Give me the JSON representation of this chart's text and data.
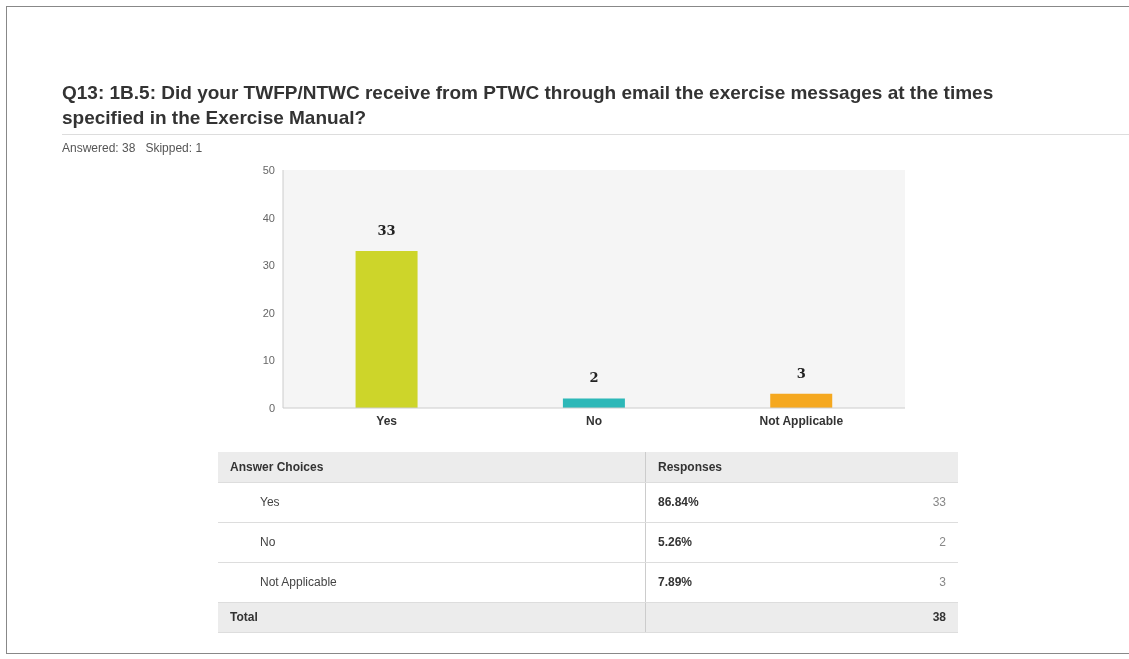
{
  "chart_data": {
    "type": "bar",
    "title": "Q13: 1B.5: Did your TWFP/NTWC receive from PTWC through email the exercise messages at the times specified in the Exercise Manual?",
    "subtitle": "Answered: 38   Skipped: 1",
    "categories": [
      "Yes",
      "No",
      "Not Applicable"
    ],
    "values": [
      33,
      2,
      3
    ],
    "colors": [
      "#cdd52a",
      "#2db8b8",
      "#f5a81f"
    ],
    "ylim": [
      0,
      50
    ],
    "yticks": [
      0,
      10,
      20,
      30,
      40,
      50
    ],
    "grid": false,
    "data_labels": true,
    "annotations": [
      "Answer Choices",
      "Responses",
      "86.84%",
      "5.26%",
      "7.89%",
      "Total",
      "38",
      "33",
      "2",
      "3"
    ]
  }
}
